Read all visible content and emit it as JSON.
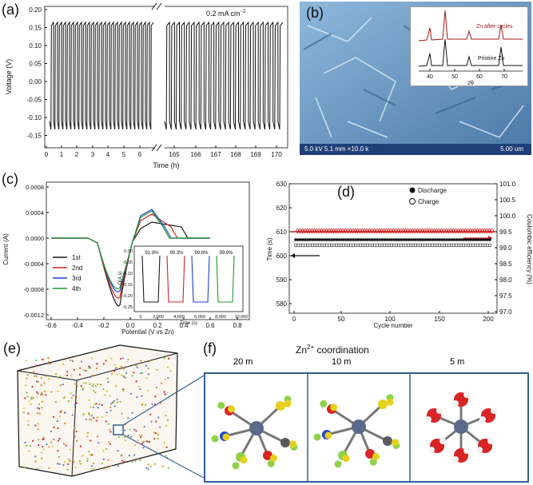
{
  "panels": {
    "a": {
      "label": "(a)",
      "ylabel": "Voltage (V)",
      "xlabel": "Time (h)",
      "annotation": "0.2 mA cm",
      "annotation_sup": "−2",
      "yticks": [
        "0.20",
        "0.15",
        "0.10",
        "0.05",
        "0.00",
        "-0.05",
        "-0.10",
        "-0.15"
      ],
      "xticks": [
        "0",
        "1",
        "2",
        "3",
        "4",
        "5",
        "6",
        "165",
        "166",
        "167",
        "168",
        "169",
        "170"
      ]
    },
    "b": {
      "label": "(b)",
      "sem_info": "5.0 kV 5.1 mm ×10.0 k",
      "scale": "5.00 um",
      "inset_series": [
        "Zn after cycles",
        "Pristine Zn"
      ],
      "inset_xticks": [
        "40",
        "50",
        "60",
        "70"
      ],
      "inset_xlabel": "2θ"
    },
    "c": {
      "label": "(c)",
      "ylabel": "Current (A)",
      "xlabel": "Potential (V vs Zn)",
      "yticks": [
        "0.0008",
        "0.0004",
        "0.0000",
        "-0.0004",
        "-0.0008",
        "-0.0012"
      ],
      "xticks": [
        "-0.6",
        "-0.4",
        "-0.2",
        "0.0",
        "0.2",
        "0.4",
        "0.6",
        "0.8"
      ],
      "legend": [
        "1st",
        "2nd",
        "3rd",
        "4th"
      ],
      "inset": {
        "ylabel": "Q(A s)",
        "xlabel": "Time (s)",
        "pcts": [
          "91.8%",
          "99.3%",
          "99.8%",
          "99.9%"
        ],
        "xticks": [
          "0",
          "2,000",
          "4,000",
          "6,000",
          "8,000",
          "10,000"
        ],
        "yticks": [
          "0.00",
          "-0.05",
          "-0.10",
          "-0.15",
          "-0.20",
          "-0.25"
        ]
      }
    },
    "d": {
      "label": "(d)",
      "ylabel": "Time (s)",
      "y2label": "Coulombic efficiency (%)",
      "xlabel": "Cycle number",
      "legend": [
        "Discharge",
        "Charge"
      ],
      "yticks": [
        "630",
        "620",
        "610",
        "600",
        "590",
        "580"
      ],
      "y2ticks": [
        "101.0",
        "100.5",
        "100.0",
        "99.5",
        "99.0",
        "98.5",
        "98.0",
        "97.5",
        "97.0"
      ],
      "xticks": [
        "0",
        "50",
        "100",
        "150",
        "200"
      ]
    },
    "e": {
      "label": "(e)"
    },
    "f": {
      "label": "(f)",
      "title": "Zn",
      "title_sup": "2+",
      "title_rest": " coordination",
      "boxes": [
        "20 m",
        "10 m",
        "5 m"
      ]
    }
  },
  "colors": {
    "c_1st": "#1a1a1a",
    "c_2nd": "#d62020",
    "c_3rd": "#1f3fcf",
    "c_4th": "#1f9a2a",
    "box_blue": "#315f96"
  }
}
